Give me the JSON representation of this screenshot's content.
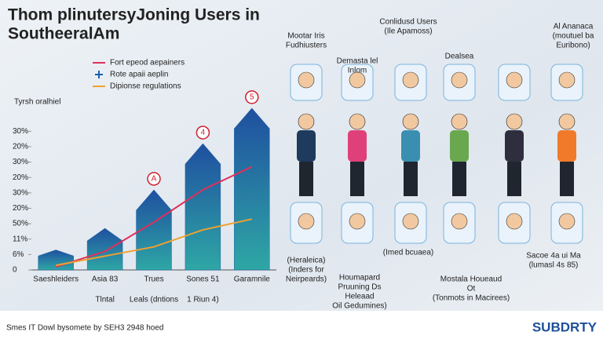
{
  "chart_data": {
    "type": "bar",
    "title_lines": [
      "Thom plinutersyJoning Users in",
      "SoutheeralAm"
    ],
    "y_label": "Tyrsh oralhiel",
    "categories": [
      "Saeshleiders",
      "Asia 83",
      "Trues",
      "Sones 51",
      "Garamnile"
    ],
    "sub_labels": [
      "Tlntal",
      "Leals (dntions",
      "1 Riun 4)"
    ],
    "series": [
      {
        "name": "Fort epeod aepainers",
        "type": "line",
        "color": "#e0305a",
        "values": [
          0.2,
          1.2,
          3.1,
          5.2,
          6.7
        ]
      },
      {
        "name": "Rote apaii aeplin",
        "type": "bar",
        "color": "#1f5fa8",
        "values": [
          1.3,
          2.7,
          5.2,
          8.2,
          10.5
        ]
      },
      {
        "name": "Dipionse regulations",
        "type": "line",
        "color": "#f0a030",
        "values": [
          0.3,
          0.9,
          1.5,
          2.6,
          3.3
        ]
      }
    ],
    "badges": [
      "A",
      "4",
      "5"
    ],
    "ylim": [
      0,
      11
    ],
    "yticks": [
      {
        "value": 0,
        "label": "0"
      },
      {
        "value": 1,
        "label": "6%"
      },
      {
        "value": 2,
        "label": "11%"
      },
      {
        "value": 3,
        "label": "50%"
      },
      {
        "value": 4,
        "label": "20%"
      },
      {
        "value": 5,
        "label": "30%"
      },
      {
        "value": 6,
        "label": "20%"
      },
      {
        "value": 7,
        "label": "30%"
      },
      {
        "value": 8,
        "label": "20%"
      },
      {
        "value": 9,
        "label": "30%"
      }
    ]
  },
  "illustration": {
    "top_labels": [
      "Mootar Iris",
      "Fudhiusters",
      "Conlidusd Users",
      "(Ile Apamoss)",
      "Al Ananaca",
      "(moutuel ba",
      "Euribono)",
      "Demasta lel",
      "Inlom",
      "Dealsea"
    ],
    "bottom_labels": [
      "(Heraleica)",
      "(Inders for",
      "Neirpeards)",
      "Houmapard",
      "Pruuning Ds",
      "Heleaad",
      "Oil Gedumines)",
      "(Imed bcuaea)",
      "Sacoe 4a ui Ma",
      "(lumasl 4s 85)",
      "Mostala Houeaud",
      "Ot",
      "(Tonmots in Macirees)"
    ]
  },
  "footer": {
    "text": "Smes IT Dowl bysomete by  SEH3 2948 hoed",
    "logo": "SUBDRTY"
  }
}
